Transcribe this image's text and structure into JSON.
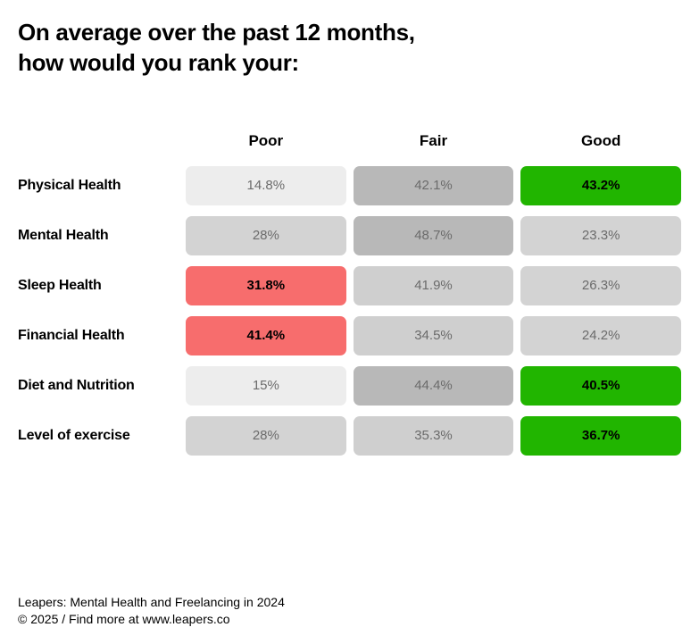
{
  "title_line1": "On average over the past 12 months,",
  "title_line2": "how would you rank your:",
  "columns": [
    "Poor",
    "Fair",
    "Good"
  ],
  "colors": {
    "green": "#21b500",
    "red": "#f76d6d",
    "gray_light": "#ededed",
    "gray_mid": "#d3d3d3",
    "gray_dark": "#b8b8b8",
    "text_muted": "#6b6b6b",
    "text_strong": "#000000"
  },
  "rows": [
    {
      "label": "Physical Health",
      "cells": [
        {
          "value": "14.8%",
          "bg": "#ededed",
          "highlight": false
        },
        {
          "value": "42.1%",
          "bg": "#b8b8b8",
          "highlight": false
        },
        {
          "value": "43.2%",
          "bg": "#21b500",
          "highlight": true
        }
      ]
    },
    {
      "label": "Mental Health",
      "cells": [
        {
          "value": "28%",
          "bg": "#d3d3d3",
          "highlight": false
        },
        {
          "value": "48.7%",
          "bg": "#b8b8b8",
          "highlight": false
        },
        {
          "value": "23.3%",
          "bg": "#d3d3d3",
          "highlight": false
        }
      ]
    },
    {
      "label": "Sleep Health",
      "cells": [
        {
          "value": "31.8%",
          "bg": "#f76d6d",
          "highlight": true
        },
        {
          "value": "41.9%",
          "bg": "#cfcfcf",
          "highlight": false
        },
        {
          "value": "26.3%",
          "bg": "#d3d3d3",
          "highlight": false
        }
      ]
    },
    {
      "label": "Financial Health",
      "cells": [
        {
          "value": "41.4%",
          "bg": "#f76d6d",
          "highlight": true
        },
        {
          "value": "34.5%",
          "bg": "#cfcfcf",
          "highlight": false
        },
        {
          "value": "24.2%",
          "bg": "#d3d3d3",
          "highlight": false
        }
      ]
    },
    {
      "label": "Diet and Nutrition",
      "cells": [
        {
          "value": "15%",
          "bg": "#ededed",
          "highlight": false
        },
        {
          "value": "44.4%",
          "bg": "#b8b8b8",
          "highlight": false
        },
        {
          "value": "40.5%",
          "bg": "#21b500",
          "highlight": true
        }
      ]
    },
    {
      "label": "Level of exercise",
      "cells": [
        {
          "value": "28%",
          "bg": "#d3d3d3",
          "highlight": false
        },
        {
          "value": "35.3%",
          "bg": "#cfcfcf",
          "highlight": false
        },
        {
          "value": "36.7%",
          "bg": "#21b500",
          "highlight": true
        }
      ]
    }
  ],
  "footer_line1": "Leapers: Mental Health and Freelancing in 2024",
  "footer_line2": "© 2025 / Find more at www.leapers.co"
}
